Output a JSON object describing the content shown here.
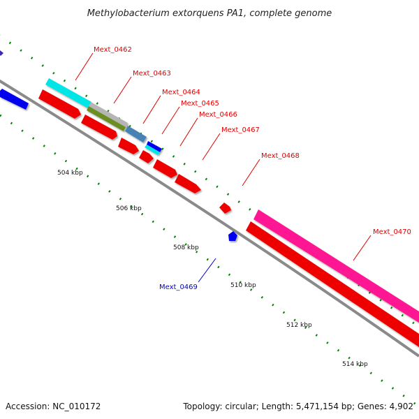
{
  "title": "Methylobacterium extorquens PA1, complete genome",
  "footer": {
    "accession": "Accession: NC_010172",
    "summary": "Topology: circular; Length: 5,471,154 bp; Genes: 4,902"
  },
  "ticks": [
    "504 kbp",
    "506 kbp",
    "508 kbp",
    "510 kbp",
    "512 kbp",
    "514 kbp"
  ],
  "genes": [
    {
      "name": "Mext_0462",
      "color": "#dd0000"
    },
    {
      "name": "Mext_0463",
      "color": "#dd0000"
    },
    {
      "name": "Mext_0464",
      "color": "#dd0000"
    },
    {
      "name": "Mext_0465",
      "color": "#dd0000"
    },
    {
      "name": "Mext_0466",
      "color": "#dd0000"
    },
    {
      "name": "Mext_0467",
      "color": "#dd0000"
    },
    {
      "name": "Mext_0468",
      "color": "#dd0000"
    },
    {
      "name": "Mext_0469",
      "color": "#0000cc"
    },
    {
      "name": "Mext_0470",
      "color": "#dd0000"
    }
  ],
  "colors": {
    "backbone": "#8a8a8a",
    "forward_cds": "#ee0000",
    "reverse_cds": "#0000ee",
    "cog_cyan": "#00e5e5",
    "cog_gray": "#b5b5b5",
    "cog_olive": "#6b8e23",
    "cog_steelblue": "#4682b4",
    "cog_magenta": "#ff1493",
    "gc_dots": "#008000"
  }
}
